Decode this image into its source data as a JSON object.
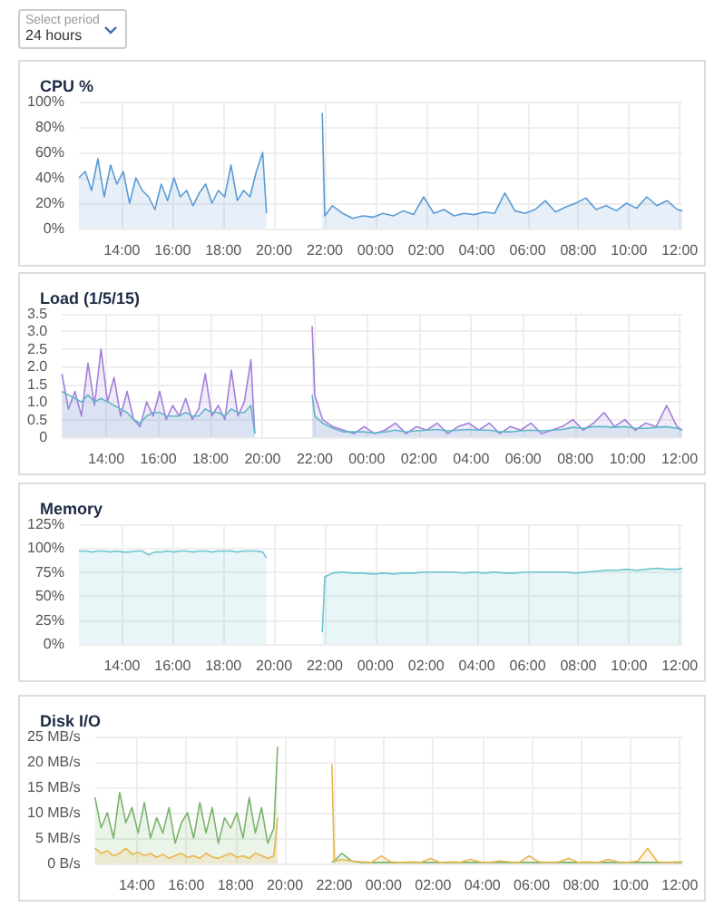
{
  "chart_data": [
    {
      "type": "area",
      "title": "CPU %",
      "annotations": [
        "Select period",
        "24 hours"
      ],
      "grid": true,
      "marker": "none",
      "x": [
        "--01-01T12:18",
        "--01-01T12:33",
        "--01-01T12:48",
        "--01-01T13:03",
        "--01-01T13:18",
        "--01-01T13:33",
        "--01-01T13:48",
        "--01-01T14:03",
        "--01-01T14:18",
        "--01-01T14:33",
        "--01-01T14:48",
        "--01-01T15:03",
        "--01-01T15:18",
        "--01-01T15:33",
        "--01-01T15:48",
        "--01-01T16:03",
        "--01-01T16:18",
        "--01-01T16:33",
        "--01-01T16:48",
        "--01-01T17:03",
        "--01-01T17:18",
        "--01-01T17:33",
        "--01-01T17:48",
        "--01-01T18:03",
        "--01-01T18:18",
        "--01-01T18:33",
        "--01-01T18:48",
        "--01-01T19:03",
        "--01-01T19:18",
        "--01-01T19:33",
        "--01-01T19:42",
        "--01-01T20:48",
        "--01-01T21:54",
        "--01-01T22:00",
        "--01-01T22:18",
        "--01-01T22:42",
        "--01-01T23:06",
        "--01-01T23:30",
        "--01-01T23:54",
        "--01-02T00:18",
        "--01-02T00:42",
        "--01-02T01:06",
        "--01-02T01:30",
        "--01-02T01:54",
        "--01-02T02:18",
        "--01-02T02:42",
        "--01-02T03:06",
        "--01-02T03:30",
        "--01-02T03:54",
        "--01-02T04:18",
        "--01-02T04:42",
        "--01-02T05:06",
        "--01-02T05:30",
        "--01-02T05:54",
        "--01-02T06:18",
        "--01-02T06:42",
        "--01-02T07:06",
        "--01-02T07:30",
        "--01-02T07:54",
        "--01-02T08:18",
        "--01-02T08:42",
        "--01-02T09:06",
        "--01-02T09:30",
        "--01-02T09:54",
        "--01-02T10:18",
        "--01-02T10:42",
        "--01-02T11:06",
        "--01-02T11:30",
        "--01-02T11:54",
        "--01-02T12:06"
      ],
      "series": [
        {
          "color": "#5b9bd5",
          "values": [
            40,
            45,
            30,
            55,
            25,
            50,
            35,
            45,
            20,
            40,
            30,
            25,
            15,
            35,
            22,
            40,
            25,
            30,
            18,
            28,
            35,
            20,
            30,
            25,
            50,
            22,
            30,
            25,
            45,
            60,
            12,
            null,
            91,
            10,
            18,
            12,
            8,
            10,
            9,
            12,
            10,
            14,
            11,
            25,
            12,
            15,
            10,
            12,
            11,
            13,
            12,
            28,
            14,
            12,
            15,
            22,
            13,
            17,
            20,
            24,
            15,
            18,
            14,
            20,
            16,
            25,
            18,
            22,
            15,
            14
          ]
        }
      ],
      "xlim": [
        "--01-01T12:18",
        "--01-02T12:06"
      ],
      "ylim": [
        0,
        100
      ],
      "yticks": [
        {
          "value": 0,
          "label": "0%"
        },
        {
          "value": 20,
          "label": "20%"
        },
        {
          "value": 40,
          "label": "40%"
        },
        {
          "value": 60,
          "label": "60%"
        },
        {
          "value": 80,
          "label": "80%"
        },
        {
          "value": 100,
          "label": "100%"
        }
      ],
      "xticks": [
        {
          "value": "--01-01T14:00",
          "label": "14:00"
        },
        {
          "value": "--01-01T16:00",
          "label": "16:00"
        },
        {
          "value": "--01-01T18:00",
          "label": "18:00"
        },
        {
          "value": "--01-01T20:00",
          "label": "20:00"
        },
        {
          "value": "--01-01T22:00",
          "label": "22:00"
        },
        {
          "value": "--01-02T00:00",
          "label": "00:00"
        },
        {
          "value": "--01-02T02:00",
          "label": "02:00"
        },
        {
          "value": "--01-02T04:00",
          "label": "04:00"
        },
        {
          "value": "--01-02T06:00",
          "label": "06:00"
        },
        {
          "value": "--01-02T08:00",
          "label": "08:00"
        },
        {
          "value": "--01-02T10:00",
          "label": "10:00"
        },
        {
          "value": "--01-02T12:00",
          "label": "12:00"
        }
      ]
    },
    {
      "type": "area",
      "title": "Load (1/5/15)",
      "grid": true,
      "marker": "none",
      "x": [
        "--01-01T12:18",
        "--01-01T12:33",
        "--01-01T12:48",
        "--01-01T13:03",
        "--01-01T13:18",
        "--01-01T13:33",
        "--01-01T13:48",
        "--01-01T14:03",
        "--01-01T14:18",
        "--01-01T14:33",
        "--01-01T14:48",
        "--01-01T15:03",
        "--01-01T15:18",
        "--01-01T15:33",
        "--01-01T15:48",
        "--01-01T16:03",
        "--01-01T16:18",
        "--01-01T16:33",
        "--01-01T16:48",
        "--01-01T17:03",
        "--01-01T17:18",
        "--01-01T17:33",
        "--01-01T17:48",
        "--01-01T18:03",
        "--01-01T18:18",
        "--01-01T18:33",
        "--01-01T18:48",
        "--01-01T19:03",
        "--01-01T19:18",
        "--01-01T19:33",
        "--01-01T19:42",
        "--01-01T20:48",
        "--01-01T21:54",
        "--01-01T22:00",
        "--01-01T22:18",
        "--01-01T22:42",
        "--01-01T23:06",
        "--01-01T23:30",
        "--01-01T23:54",
        "--01-02T00:18",
        "--01-02T00:42",
        "--01-02T01:06",
        "--01-02T01:30",
        "--01-02T01:54",
        "--01-02T02:18",
        "--01-02T02:42",
        "--01-02T03:06",
        "--01-02T03:30",
        "--01-02T03:54",
        "--01-02T04:18",
        "--01-02T04:42",
        "--01-02T05:06",
        "--01-02T05:30",
        "--01-02T05:54",
        "--01-02T06:18",
        "--01-02T06:42",
        "--01-02T07:06",
        "--01-02T07:30",
        "--01-02T07:54",
        "--01-02T08:18",
        "--01-02T08:42",
        "--01-02T09:06",
        "--01-02T09:30",
        "--01-02T09:54",
        "--01-02T10:18",
        "--01-02T10:42",
        "--01-02T11:06",
        "--01-02T11:30",
        "--01-02T11:54",
        "--01-02T12:06"
      ],
      "series": [
        {
          "color": "#a47fd9",
          "values": [
            1.8,
            0.8,
            1.3,
            0.6,
            2.1,
            0.9,
            2.5,
            1.0,
            1.7,
            0.6,
            1.3,
            0.5,
            0.3,
            1.0,
            0.6,
            1.3,
            0.5,
            0.9,
            0.6,
            1.1,
            0.5,
            0.8,
            1.8,
            0.6,
            0.9,
            0.5,
            1.9,
            0.6,
            1.0,
            2.2,
            0.1,
            null,
            3.15,
            1.2,
            0.5,
            0.3,
            0.2,
            0.1,
            0.3,
            0.1,
            0.2,
            0.4,
            0.1,
            0.3,
            0.2,
            0.4,
            0.1,
            0.3,
            0.4,
            0.2,
            0.4,
            0.1,
            0.3,
            0.2,
            0.4,
            0.1,
            0.2,
            0.3,
            0.5,
            0.2,
            0.4,
            0.7,
            0.3,
            0.5,
            0.2,
            0.4,
            0.3,
            0.9,
            0.3,
            0.2
          ]
        },
        {
          "color": "#5fb8c9",
          "values": [
            1.3,
            1.2,
            1.1,
            1.0,
            1.2,
            1.0,
            1.1,
            1.0,
            0.9,
            0.8,
            0.7,
            0.5,
            0.4,
            0.6,
            0.7,
            0.7,
            0.6,
            0.6,
            0.6,
            0.7,
            0.6,
            0.6,
            0.8,
            0.7,
            0.7,
            0.6,
            0.8,
            0.7,
            0.7,
            0.9,
            0.1,
            null,
            1.2,
            0.6,
            0.4,
            0.25,
            0.15,
            0.15,
            0.15,
            0.12,
            0.15,
            0.2,
            0.15,
            0.18,
            0.2,
            0.22,
            0.18,
            0.2,
            0.22,
            0.2,
            0.2,
            0.15,
            0.15,
            0.18,
            0.2,
            0.18,
            0.2,
            0.22,
            0.28,
            0.25,
            0.3,
            0.3,
            0.28,
            0.3,
            0.25,
            0.25,
            0.28,
            0.3,
            0.25,
            0.2
          ]
        }
      ],
      "xlim": [
        "--01-01T12:18",
        "--01-02T12:06"
      ],
      "ylim": [
        0,
        3.5
      ],
      "yticks": [
        0,
        {
          "value": 0.5,
          "label": "0.5"
        },
        {
          "value": 1,
          "label": "1.0"
        },
        {
          "value": 1.5,
          "label": "1.5"
        },
        {
          "value": 2,
          "label": "2.0"
        },
        {
          "value": 2.5,
          "label": "2.5"
        },
        {
          "value": 3,
          "label": "3.0"
        },
        {
          "value": 3.5,
          "label": "3.5"
        }
      ],
      "xticks": [
        {
          "value": "--01-01T14:00",
          "label": "14:00"
        },
        {
          "value": "--01-01T16:00",
          "label": "16:00"
        },
        {
          "value": "--01-01T18:00",
          "label": "18:00"
        },
        {
          "value": "--01-01T20:00",
          "label": "20:00"
        },
        {
          "value": "--01-01T22:00",
          "label": "22:00"
        },
        {
          "value": "--01-02T00:00",
          "label": "00:00"
        },
        {
          "value": "--01-02T02:00",
          "label": "02:00"
        },
        {
          "value": "--01-02T04:00",
          "label": "04:00"
        },
        {
          "value": "--01-02T06:00",
          "label": "06:00"
        },
        {
          "value": "--01-02T08:00",
          "label": "08:00"
        },
        {
          "value": "--01-02T10:00",
          "label": "10:00"
        },
        {
          "value": "--01-02T12:00",
          "label": "12:00"
        }
      ]
    },
    {
      "type": "area",
      "title": "Memory",
      "grid": true,
      "marker": "none",
      "x": [
        "--01-01T12:18",
        "--01-01T12:33",
        "--01-01T12:48",
        "--01-01T13:03",
        "--01-01T13:18",
        "--01-01T13:33",
        "--01-01T13:48",
        "--01-01T14:03",
        "--01-01T14:18",
        "--01-01T14:33",
        "--01-01T14:48",
        "--01-01T15:03",
        "--01-01T15:18",
        "--01-01T15:33",
        "--01-01T15:48",
        "--01-01T16:03",
        "--01-01T16:18",
        "--01-01T16:33",
        "--01-01T16:48",
        "--01-01T17:03",
        "--01-01T17:18",
        "--01-01T17:33",
        "--01-01T17:48",
        "--01-01T18:03",
        "--01-01T18:18",
        "--01-01T18:33",
        "--01-01T18:48",
        "--01-01T19:03",
        "--01-01T19:18",
        "--01-01T19:33",
        "--01-01T19:42",
        "--01-01T20:48",
        "--01-01T21:54",
        "--01-01T22:00",
        "--01-01T22:18",
        "--01-01T22:42",
        "--01-01T23:06",
        "--01-01T23:30",
        "--01-01T23:54",
        "--01-02T00:18",
        "--01-02T00:42",
        "--01-02T01:06",
        "--01-02T01:30",
        "--01-02T01:54",
        "--01-02T02:18",
        "--01-02T02:42",
        "--01-02T03:06",
        "--01-02T03:30",
        "--01-02T03:54",
        "--01-02T04:18",
        "--01-02T04:42",
        "--01-02T05:06",
        "--01-02T05:30",
        "--01-02T05:54",
        "--01-02T06:18",
        "--01-02T06:42",
        "--01-02T07:06",
        "--01-02T07:30",
        "--01-02T07:54",
        "--01-02T08:18",
        "--01-02T08:42",
        "--01-02T09:06",
        "--01-02T09:30",
        "--01-02T09:54",
        "--01-02T10:18",
        "--01-02T10:42",
        "--01-02T11:06",
        "--01-02T11:30",
        "--01-02T11:54",
        "--01-02T12:06"
      ],
      "series": [
        {
          "color": "#6cc5cf",
          "values": [
            97,
            97,
            96,
            97,
            97,
            96,
            97,
            96,
            96,
            97,
            97,
            93,
            96,
            96,
            97,
            96,
            97,
            97,
            96,
            97,
            97,
            96,
            97,
            97,
            97,
            96,
            97,
            97,
            97,
            96,
            90,
            null,
            12,
            70,
            74,
            75,
            74,
            74,
            73,
            74,
            73,
            74,
            74,
            75,
            75,
            75,
            75,
            74,
            75,
            74,
            75,
            74,
            74,
            75,
            75,
            75,
            75,
            75,
            74,
            75,
            76,
            77,
            77,
            78,
            77,
            78,
            79,
            78,
            78,
            79
          ]
        }
      ],
      "xlim": [
        "--01-01T12:18",
        "--01-02T12:06"
      ],
      "ylim": [
        0,
        125
      ],
      "yticks": [
        {
          "value": 0,
          "label": "0%"
        },
        {
          "value": 25,
          "label": "25%"
        },
        {
          "value": 50,
          "label": "50%"
        },
        {
          "value": 75,
          "label": "75%"
        },
        {
          "value": 100,
          "label": "100%"
        },
        {
          "value": 125,
          "label": "125%"
        }
      ],
      "xticks": [
        {
          "value": "--01-01T14:00",
          "label": "14:00"
        },
        {
          "value": "--01-01T16:00",
          "label": "16:00"
        },
        {
          "value": "--01-01T18:00",
          "label": "18:00"
        },
        {
          "value": "--01-01T20:00",
          "label": "20:00"
        },
        {
          "value": "--01-01T22:00",
          "label": "22:00"
        },
        {
          "value": "--01-02T00:00",
          "label": "00:00"
        },
        {
          "value": "--01-02T02:00",
          "label": "02:00"
        },
        {
          "value": "--01-02T04:00",
          "label": "04:00"
        },
        {
          "value": "--01-02T06:00",
          "label": "06:00"
        },
        {
          "value": "--01-02T08:00",
          "label": "08:00"
        },
        {
          "value": "--01-02T10:00",
          "label": "10:00"
        },
        {
          "value": "--01-02T12:00",
          "label": "12:00"
        }
      ]
    },
    {
      "type": "area",
      "title": "Disk I/O",
      "grid": true,
      "marker": "none",
      "x": [
        "--01-01T12:18",
        "--01-01T12:33",
        "--01-01T12:48",
        "--01-01T13:03",
        "--01-01T13:18",
        "--01-01T13:33",
        "--01-01T13:48",
        "--01-01T14:03",
        "--01-01T14:18",
        "--01-01T14:33",
        "--01-01T14:48",
        "--01-01T15:03",
        "--01-01T15:18",
        "--01-01T15:33",
        "--01-01T15:48",
        "--01-01T16:03",
        "--01-01T16:18",
        "--01-01T16:33",
        "--01-01T16:48",
        "--01-01T17:03",
        "--01-01T17:18",
        "--01-01T17:33",
        "--01-01T17:48",
        "--01-01T18:03",
        "--01-01T18:18",
        "--01-01T18:33",
        "--01-01T18:48",
        "--01-01T19:03",
        "--01-01T19:18",
        "--01-01T19:33",
        "--01-01T19:42",
        "--01-01T20:48",
        "--01-01T21:54",
        "--01-01T22:00",
        "--01-01T22:18",
        "--01-01T22:42",
        "--01-01T23:06",
        "--01-01T23:30",
        "--01-01T23:54",
        "--01-02T00:18",
        "--01-02T00:42",
        "--01-02T01:06",
        "--01-02T01:30",
        "--01-02T01:54",
        "--01-02T02:18",
        "--01-02T02:42",
        "--01-02T03:06",
        "--01-02T03:30",
        "--01-02T03:54",
        "--01-02T04:18",
        "--01-02T04:42",
        "--01-02T05:06",
        "--01-02T05:30",
        "--01-02T05:54",
        "--01-02T06:18",
        "--01-02T06:42",
        "--01-02T07:06",
        "--01-02T07:30",
        "--01-02T07:54",
        "--01-02T08:18",
        "--01-02T08:42",
        "--01-02T09:06",
        "--01-02T09:30",
        "--01-02T09:54",
        "--01-02T10:18",
        "--01-02T10:42",
        "--01-02T11:06",
        "--01-02T11:30",
        "--01-02T11:54",
        "--01-02T12:06"
      ],
      "series": [
        {
          "color": "#79b36a",
          "values": [
            13,
            7,
            10,
            5,
            14,
            8,
            11,
            6,
            12,
            5,
            9,
            6,
            11,
            4,
            8,
            10,
            5,
            12,
            6,
            11,
            4,
            9,
            7,
            10,
            5,
            13,
            6,
            11,
            4,
            7,
            23,
            null,
            0.3,
            0.5,
            2,
            0.5,
            0.2,
            0.2,
            0.2,
            0.2,
            0.2,
            0.2,
            0.2,
            0.2,
            0.2,
            0.2,
            0.2,
            0.2,
            0.2,
            0.2,
            0.2,
            0.2,
            0.2,
            0.2,
            0.2,
            0.2,
            0.2,
            0.2,
            0.2,
            0.2,
            0.2,
            0.2,
            0.2,
            0.2,
            0.2,
            0.2,
            0.2,
            0.2,
            0.2,
            0.2
          ]
        },
        {
          "color": "#e8b64c",
          "values": [
            3,
            2,
            2.5,
            1.5,
            2,
            3,
            1.8,
            2.2,
            1.5,
            2,
            1.2,
            1.8,
            1,
            1.5,
            2,
            1.2,
            1.5,
            1,
            2,
            1.3,
            1,
            1.5,
            2,
            1.2,
            1.5,
            1,
            2,
            1.5,
            1,
            1.5,
            9,
            null,
            19.5,
            0.5,
            0.8,
            0.5,
            0.3,
            0.2,
            1.5,
            0.3,
            0.2,
            0.3,
            0.2,
            1,
            0.2,
            0.3,
            0.2,
            0.8,
            0.3,
            0.2,
            0.5,
            0.3,
            0.2,
            1.5,
            0.3,
            0.2,
            0.3,
            1,
            0.2,
            0.3,
            0.2,
            0.8,
            0.3,
            0.2,
            0.5,
            3,
            0.3,
            0.2,
            0.3,
            0.3
          ]
        }
      ],
      "xlim": [
        "--01-01T12:18",
        "--01-02T12:06"
      ],
      "ylim": [
        0,
        25
      ],
      "yticks": [
        {
          "value": 0,
          "label": "0 B/s"
        },
        {
          "value": 5,
          "label": "5 MB/s"
        },
        {
          "value": 10,
          "label": "10 MB/s"
        },
        {
          "value": 15,
          "label": "15 MB/s"
        },
        {
          "value": 20,
          "label": "20 MB/s"
        },
        {
          "value": 25,
          "label": "25 MB/s"
        }
      ],
      "xticks": [
        {
          "value": "--01-01T14:00",
          "label": "14:00"
        },
        {
          "value": "--01-01T16:00",
          "label": "16:00"
        },
        {
          "value": "--01-01T18:00",
          "label": "18:00"
        },
        {
          "value": "--01-01T20:00",
          "label": "20:00"
        },
        {
          "value": "--01-01T22:00",
          "label": "22:00"
        },
        {
          "value": "--01-02T00:00",
          "label": "00:00"
        },
        {
          "value": "--01-02T02:00",
          "label": "02:00"
        },
        {
          "value": "--01-02T04:00",
          "label": "04:00"
        },
        {
          "value": "--01-02T06:00",
          "label": "06:00"
        },
        {
          "value": "--01-02T08:00",
          "label": "08:00"
        },
        {
          "value": "--01-02T10:00",
          "label": "10:00"
        },
        {
          "value": "--01-02T12:00",
          "label": "12:00"
        }
      ]
    }
  ]
}
